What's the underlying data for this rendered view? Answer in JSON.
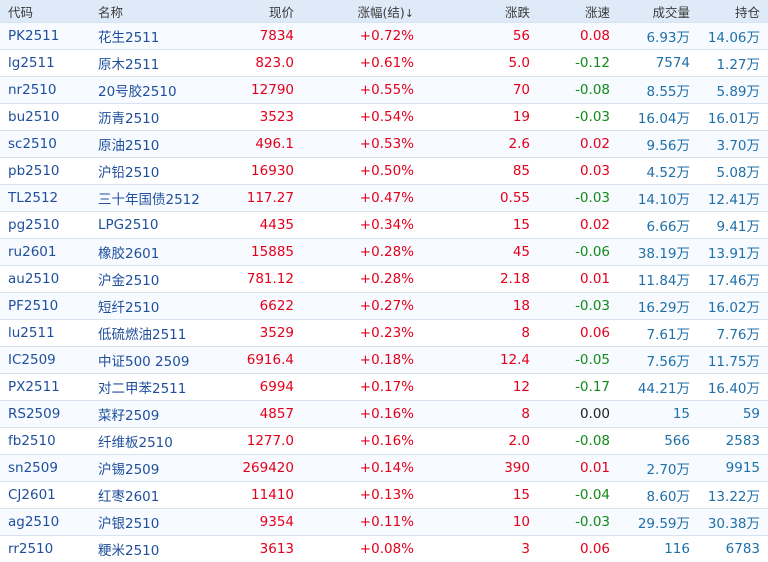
{
  "columns": {
    "code": "代码",
    "name": "名称",
    "price": "现价",
    "pct": "涨幅(结)",
    "pct_sort_icon": "↓",
    "chg": "涨跌",
    "speed": "涨速",
    "volume": "成交量",
    "oi": "持仓"
  },
  "rows": [
    {
      "code": "PK2511",
      "name": "花生2511",
      "price": "7834",
      "pct": "+0.72%",
      "chg": "56",
      "speed": "0.08",
      "volume": "6.93万",
      "oi": "14.06万"
    },
    {
      "code": "lg2511",
      "name": "原木2511",
      "price": "823.0",
      "pct": "+0.61%",
      "chg": "5.0",
      "speed": "-0.12",
      "volume": "7574",
      "oi": "1.27万"
    },
    {
      "code": "nr2510",
      "name": "20号胶2510",
      "price": "12790",
      "pct": "+0.55%",
      "chg": "70",
      "speed": "-0.08",
      "volume": "8.55万",
      "oi": "5.89万"
    },
    {
      "code": "bu2510",
      "name": "沥青2510",
      "price": "3523",
      "pct": "+0.54%",
      "chg": "19",
      "speed": "-0.03",
      "volume": "16.04万",
      "oi": "16.01万"
    },
    {
      "code": "sc2510",
      "name": "原油2510",
      "price": "496.1",
      "pct": "+0.53%",
      "chg": "2.6",
      "speed": "0.02",
      "volume": "9.56万",
      "oi": "3.70万"
    },
    {
      "code": "pb2510",
      "name": "沪铅2510",
      "price": "16930",
      "pct": "+0.50%",
      "chg": "85",
      "speed": "0.03",
      "volume": "4.52万",
      "oi": "5.08万"
    },
    {
      "code": "TL2512",
      "name": "三十年国债2512",
      "price": "117.27",
      "pct": "+0.47%",
      "chg": "0.55",
      "speed": "-0.03",
      "volume": "14.10万",
      "oi": "12.41万"
    },
    {
      "code": "pg2510",
      "name": "LPG2510",
      "price": "4435",
      "pct": "+0.34%",
      "chg": "15",
      "speed": "0.02",
      "volume": "6.66万",
      "oi": "9.41万"
    },
    {
      "code": "ru2601",
      "name": "橡胶2601",
      "price": "15885",
      "pct": "+0.28%",
      "chg": "45",
      "speed": "-0.06",
      "volume": "38.19万",
      "oi": "13.91万"
    },
    {
      "code": "au2510",
      "name": "沪金2510",
      "price": "781.12",
      "pct": "+0.28%",
      "chg": "2.18",
      "speed": "0.01",
      "volume": "11.84万",
      "oi": "17.46万"
    },
    {
      "code": "PF2510",
      "name": "短纤2510",
      "price": "6622",
      "pct": "+0.27%",
      "chg": "18",
      "speed": "-0.03",
      "volume": "16.29万",
      "oi": "16.02万"
    },
    {
      "code": "lu2511",
      "name": "低硫燃油2511",
      "price": "3529",
      "pct": "+0.23%",
      "chg": "8",
      "speed": "0.06",
      "volume": "7.61万",
      "oi": "7.76万"
    },
    {
      "code": "IC2509",
      "name": "中证500 2509",
      "price": "6916.4",
      "pct": "+0.18%",
      "chg": "12.4",
      "speed": "-0.05",
      "volume": "7.56万",
      "oi": "11.75万"
    },
    {
      "code": "PX2511",
      "name": "对二甲苯2511",
      "price": "6994",
      "pct": "+0.17%",
      "chg": "12",
      "speed": "-0.17",
      "volume": "44.21万",
      "oi": "16.40万"
    },
    {
      "code": "RS2509",
      "name": "菜籽2509",
      "price": "4857",
      "pct": "+0.16%",
      "chg": "8",
      "speed": "0.00",
      "volume": "15",
      "oi": "59"
    },
    {
      "code": "fb2510",
      "name": "纤维板2510",
      "price": "1277.0",
      "pct": "+0.16%",
      "chg": "2.0",
      "speed": "-0.08",
      "volume": "566",
      "oi": "2583"
    },
    {
      "code": "sn2509",
      "name": "沪锡2509",
      "price": "269420",
      "pct": "+0.14%",
      "chg": "390",
      "speed": "0.01",
      "volume": "2.70万",
      "oi": "9915"
    },
    {
      "code": "CJ2601",
      "name": "红枣2601",
      "price": "11410",
      "pct": "+0.13%",
      "chg": "15",
      "speed": "-0.04",
      "volume": "8.60万",
      "oi": "13.22万"
    },
    {
      "code": "ag2510",
      "name": "沪银2510",
      "price": "9354",
      "pct": "+0.11%",
      "chg": "10",
      "speed": "-0.03",
      "volume": "29.59万",
      "oi": "30.38万"
    },
    {
      "code": "rr2510",
      "name": "粳米2510",
      "price": "3613",
      "pct": "+0.08%",
      "chg": "3",
      "speed": "0.06",
      "volume": "116",
      "oi": "6783"
    }
  ]
}
